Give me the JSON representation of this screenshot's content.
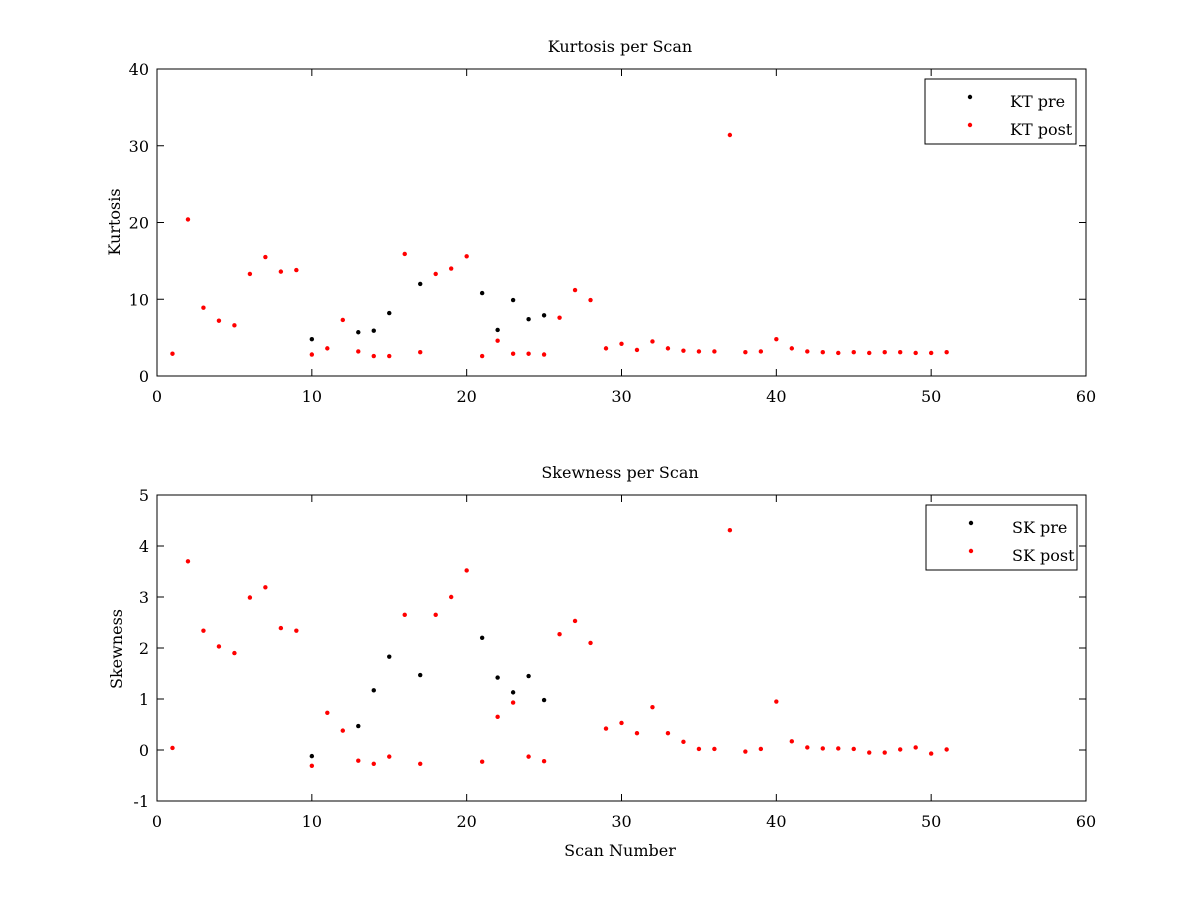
{
  "chart_data": [
    {
      "type": "scatter",
      "title": "Kurtosis per Scan",
      "xlabel": "",
      "ylabel": "Kurtosis",
      "xlim": [
        0,
        60
      ],
      "ylim": [
        0,
        40
      ],
      "xticks": [
        0,
        10,
        20,
        30,
        40,
        50,
        60
      ],
      "yticks": [
        0,
        10,
        20,
        30,
        40
      ],
      "legend_position": "top-right",
      "series": [
        {
          "name": "KT pre",
          "color": "#000000",
          "points": [
            [
              10,
              4.8
            ],
            [
              13,
              5.7
            ],
            [
              14,
              5.9
            ],
            [
              15,
              8.2
            ],
            [
              17,
              12.0
            ],
            [
              21,
              10.8
            ],
            [
              22,
              6.0
            ],
            [
              23,
              9.9
            ],
            [
              24,
              7.4
            ],
            [
              25,
              7.9
            ]
          ]
        },
        {
          "name": "KT post",
          "color": "#ff0000",
          "points": [
            [
              1,
              2.9
            ],
            [
              2,
              20.4
            ],
            [
              3,
              8.9
            ],
            [
              4,
              7.2
            ],
            [
              5,
              6.6
            ],
            [
              6,
              13.3
            ],
            [
              7,
              15.5
            ],
            [
              8,
              13.6
            ],
            [
              9,
              13.8
            ],
            [
              10,
              2.8
            ],
            [
              11,
              3.6
            ],
            [
              12,
              7.3
            ],
            [
              13,
              3.2
            ],
            [
              14,
              2.6
            ],
            [
              15,
              2.6
            ],
            [
              16,
              15.9
            ],
            [
              17,
              3.1
            ],
            [
              18,
              13.3
            ],
            [
              19,
              14.0
            ],
            [
              20,
              15.6
            ],
            [
              21,
              2.6
            ],
            [
              22,
              4.6
            ],
            [
              23,
              2.9
            ],
            [
              24,
              2.9
            ],
            [
              25,
              2.8
            ],
            [
              26,
              7.6
            ],
            [
              27,
              11.2
            ],
            [
              28,
              9.9
            ],
            [
              29,
              3.6
            ],
            [
              30,
              4.2
            ],
            [
              31,
              3.4
            ],
            [
              32,
              4.5
            ],
            [
              33,
              3.6
            ],
            [
              34,
              3.3
            ],
            [
              35,
              3.2
            ],
            [
              36,
              3.2
            ],
            [
              37,
              31.4
            ],
            [
              38,
              3.1
            ],
            [
              39,
              3.2
            ],
            [
              40,
              4.8
            ],
            [
              41,
              3.6
            ],
            [
              42,
              3.2
            ],
            [
              43,
              3.1
            ],
            [
              44,
              3.0
            ],
            [
              45,
              3.1
            ],
            [
              46,
              3.0
            ],
            [
              47,
              3.1
            ],
            [
              48,
              3.1
            ],
            [
              49,
              3.0
            ],
            [
              50,
              3.0
            ],
            [
              51,
              3.1
            ]
          ]
        }
      ]
    },
    {
      "type": "scatter",
      "title": "Skewness per Scan",
      "xlabel": "Scan Number",
      "ylabel": "Skewness",
      "xlim": [
        0,
        60
      ],
      "ylim": [
        -1,
        5
      ],
      "xticks": [
        0,
        10,
        20,
        30,
        40,
        50,
        60
      ],
      "yticks": [
        -1,
        0,
        1,
        2,
        3,
        4,
        5
      ],
      "legend_position": "top-right",
      "series": [
        {
          "name": "SK pre",
          "color": "#000000",
          "points": [
            [
              10,
              -0.12
            ],
            [
              13,
              0.47
            ],
            [
              14,
              1.17
            ],
            [
              15,
              1.83
            ],
            [
              17,
              1.47
            ],
            [
              21,
              2.2
            ],
            [
              22,
              1.42
            ],
            [
              23,
              1.13
            ],
            [
              24,
              1.45
            ],
            [
              25,
              0.98
            ]
          ]
        },
        {
          "name": "SK post",
          "color": "#ff0000",
          "points": [
            [
              1,
              0.04
            ],
            [
              2,
              3.7
            ],
            [
              3,
              2.34
            ],
            [
              4,
              2.03
            ],
            [
              5,
              1.9
            ],
            [
              6,
              2.99
            ],
            [
              7,
              3.19
            ],
            [
              8,
              2.39
            ],
            [
              9,
              2.34
            ],
            [
              10,
              -0.31
            ],
            [
              11,
              0.73
            ],
            [
              12,
              0.38
            ],
            [
              13,
              -0.21
            ],
            [
              14,
              -0.27
            ],
            [
              15,
              -0.13
            ],
            [
              16,
              2.65
            ],
            [
              17,
              -0.27
            ],
            [
              18,
              2.65
            ],
            [
              19,
              3.0
            ],
            [
              20,
              3.52
            ],
            [
              21,
              -0.23
            ],
            [
              22,
              0.65
            ],
            [
              23,
              0.93
            ],
            [
              24,
              -0.13
            ],
            [
              25,
              -0.22
            ],
            [
              26,
              2.27
            ],
            [
              27,
              2.53
            ],
            [
              28,
              2.1
            ],
            [
              29,
              0.42
            ],
            [
              30,
              0.53
            ],
            [
              31,
              0.33
            ],
            [
              32,
              0.84
            ],
            [
              33,
              0.33
            ],
            [
              34,
              0.16
            ],
            [
              35,
              0.02
            ],
            [
              36,
              0.02
            ],
            [
              37,
              4.31
            ],
            [
              38,
              -0.03
            ],
            [
              39,
              0.02
            ],
            [
              40,
              0.95
            ],
            [
              41,
              0.17
            ],
            [
              42,
              0.05
            ],
            [
              43,
              0.03
            ],
            [
              44,
              0.03
            ],
            [
              45,
              0.02
            ],
            [
              46,
              -0.05
            ],
            [
              47,
              -0.05
            ],
            [
              48,
              0.01
            ],
            [
              49,
              0.05
            ],
            [
              50,
              -0.07
            ],
            [
              51,
              0.01
            ]
          ]
        }
      ]
    }
  ]
}
